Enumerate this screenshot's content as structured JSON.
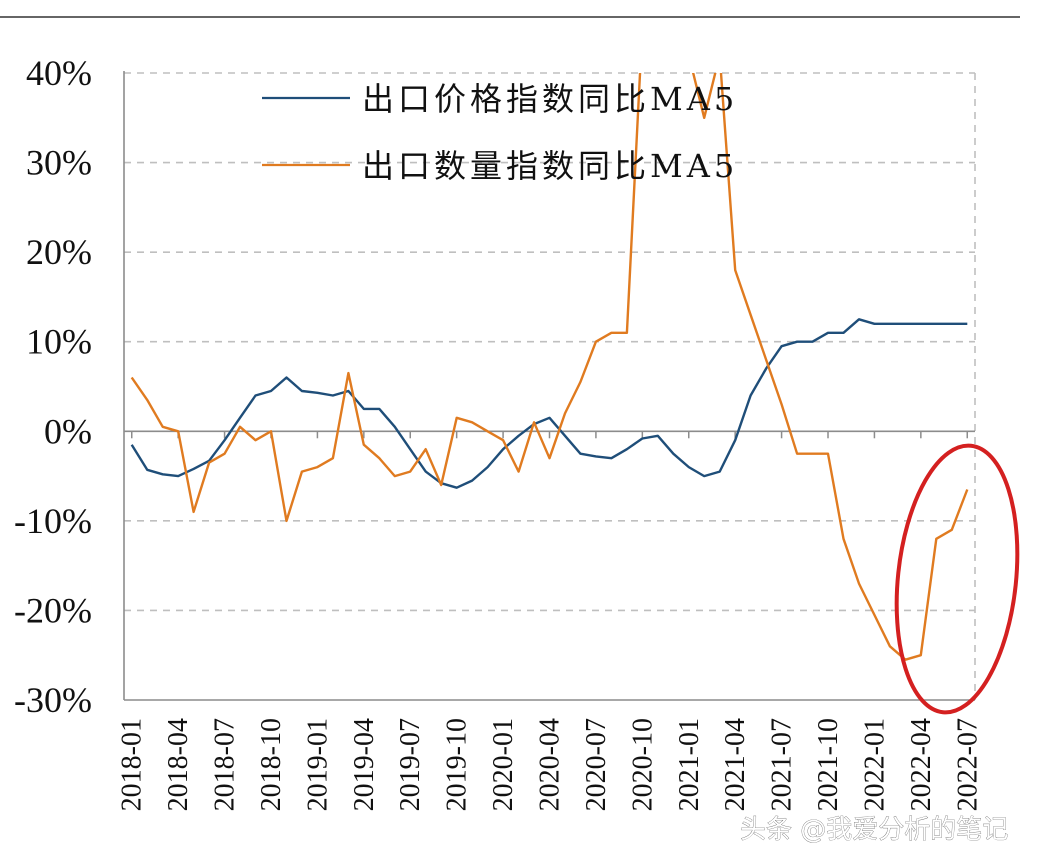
{
  "chart_data": {
    "type": "line",
    "title": "",
    "xlabel": "",
    "ylabel": "",
    "ylim": [
      -30,
      40
    ],
    "y_ticks": [
      -30,
      -20,
      -10,
      0,
      10,
      20,
      30,
      40
    ],
    "y_tick_labels": [
      "-30%",
      "-20%",
      "-10%",
      "0%",
      "10%",
      "20%",
      "30%",
      "40%"
    ],
    "x_tick_labels": [
      "2018-01",
      "2018-04",
      "2018-07",
      "2018-10",
      "2019-01",
      "2019-04",
      "2019-07",
      "2019-10",
      "2020-01",
      "2020-04",
      "2020-07",
      "2020-10",
      "2021-01",
      "2021-04",
      "2021-07",
      "2021-10",
      "2022-01",
      "2022-04",
      "2022-07"
    ],
    "months": [
      "2018-01",
      "2018-02",
      "2018-03",
      "2018-04",
      "2018-05",
      "2018-06",
      "2018-07",
      "2018-08",
      "2018-09",
      "2018-10",
      "2018-11",
      "2018-12",
      "2019-01",
      "2019-02",
      "2019-03",
      "2019-04",
      "2019-05",
      "2019-06",
      "2019-07",
      "2019-08",
      "2019-09",
      "2019-10",
      "2019-11",
      "2019-12",
      "2020-01",
      "2020-02",
      "2020-03",
      "2020-04",
      "2020-05",
      "2020-06",
      "2020-07",
      "2020-08",
      "2020-09",
      "2020-10",
      "2020-11",
      "2020-12",
      "2021-01",
      "2021-02",
      "2021-03",
      "2021-04",
      "2021-05",
      "2021-06",
      "2021-07",
      "2021-08",
      "2021-09",
      "2021-10",
      "2021-11",
      "2021-12",
      "2022-01",
      "2022-02",
      "2022-03",
      "2022-04",
      "2022-05",
      "2022-06",
      "2022-07"
    ],
    "grid": true,
    "legend_position": "top",
    "series": [
      {
        "name": "出口价格指数同比MA5",
        "color": "#1f4e79",
        "values": [
          -1.5,
          -4.3,
          -4.8,
          -5.0,
          -4.2,
          -3.3,
          -1.0,
          1.5,
          4.0,
          4.5,
          6.0,
          4.5,
          4.3,
          4.0,
          4.5,
          2.5,
          2.5,
          0.5,
          -2.0,
          -4.5,
          -5.8,
          -6.3,
          -5.5,
          -4.0,
          -2.0,
          -0.5,
          0.8,
          1.5,
          -0.5,
          -2.5,
          -2.8,
          -3.0,
          -2.0,
          -0.8,
          -0.5,
          -2.5,
          -4.0,
          -5.0,
          -4.5,
          -1.0,
          4.0,
          7.0,
          9.5,
          10.0,
          10.0,
          11.0,
          11.0,
          12.5,
          12.0,
          12.0,
          12.0,
          12.0,
          12.0,
          12.0,
          12.0
        ],
        "x_months": [
          "2018-01",
          "2018-02",
          "2018-03",
          "2018-04",
          "2018-05",
          "2018-06",
          "2018-07",
          "2018-08",
          "2018-09",
          "2018-10",
          "2018-11",
          "2018-12",
          "2019-01",
          "2019-02",
          "2019-03",
          "2019-04",
          "2019-05",
          "2019-06",
          "2019-07",
          "2019-08",
          "2019-09",
          "2019-10",
          "2019-11",
          "2019-12",
          "2020-01",
          "2020-02",
          "2020-03",
          "2020-04",
          "2020-05",
          "2020-06",
          "2020-07",
          "2020-08",
          "2020-09",
          "2020-10",
          "2020-11",
          "2020-12",
          "2021-01",
          "2021-02",
          "2021-03",
          "2021-04",
          "2021-05",
          "2021-06",
          "2021-07",
          "2021-08",
          "2021-09",
          "2021-10",
          "2021-11",
          "2021-12",
          "2022-01",
          "2022-02",
          "2022-03",
          "2022-04",
          "2022-05",
          "2022-06",
          "2022-07"
        ]
      },
      {
        "name": "出口数量指数同比MA5",
        "color": "#e07b20",
        "x_months": [
          "2018-01",
          "2018-02",
          "2018-03",
          "2018-04",
          "2018-05",
          "2018-06",
          "2018-07",
          "2018-08",
          "2018-09",
          "2018-10",
          "2018-11",
          "2018-12",
          "2019-01",
          "2019-02",
          "2019-03",
          "2019-04",
          "2019-05",
          "2019-06",
          "2019-07",
          "2019-08",
          "2019-09",
          "2019-10",
          "2019-11",
          "2019-12",
          "2020-01",
          "2020-02",
          "2020-03",
          "2020-04",
          "2020-05",
          "2020-06",
          "2020-07",
          "2020-08",
          "2020-09",
          "2020-10",
          "2020-11",
          "2020-12",
          "2021-01",
          "2021-02",
          "2021-03",
          "2021-04",
          "2021-05",
          "2021-06",
          "2021-07",
          "2021-08",
          "2021-09",
          "2021-10",
          "2021-11",
          "2021-12",
          "2022-01",
          "2022-02",
          "2022-03",
          "2022-04",
          "2022-05",
          "2022-06",
          "2022-07"
        ],
        "values": [
          6.0,
          3.5,
          0.5,
          0.0,
          -9.0,
          -3.5,
          -2.5,
          0.5,
          -1.0,
          0.0,
          -10.0,
          -4.5,
          -4.0,
          -3.0,
          6.5,
          -1.5,
          -3.0,
          -5.0,
          -4.5,
          -2.0,
          -6.0,
          1.5,
          1.0,
          0.0,
          -1.0,
          -4.5,
          1.0,
          -3.0,
          2.0,
          5.5,
          10.0,
          11.0,
          11.0,
          45.0,
          55.0,
          50.0,
          42.0,
          35.0,
          42.0,
          18.0,
          13.0,
          8.0,
          3.0,
          -2.5,
          -2.5,
          -2.5,
          -12.0,
          -17.0,
          -20.5,
          -24.0,
          -25.5,
          -25.0,
          -12.0,
          -11.0,
          -6.5
        ]
      }
    ]
  },
  "watermark": "头条 @我爱分析的笔记"
}
